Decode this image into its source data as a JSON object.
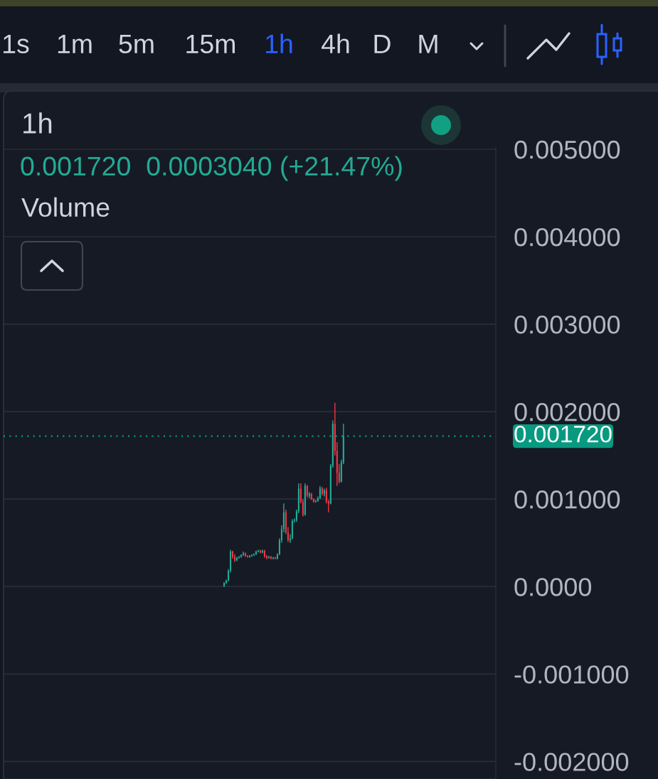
{
  "chart_data": {
    "type": "candlestick",
    "title": "1h",
    "subtitle": "0.001720  0.0003040 (+21.47%)",
    "annotations": [
      "1s",
      "1m",
      "5m",
      "15m",
      "1h",
      "4h",
      "D",
      "M",
      "Volume"
    ],
    "categories": [
      null,
      null,
      null,
      null,
      null,
      null,
      null,
      null,
      null,
      null,
      null,
      null,
      null,
      null,
      null,
      null,
      null,
      null,
      null,
      null,
      null,
      null,
      null,
      null,
      null,
      null,
      null,
      null,
      null,
      null,
      null,
      null,
      null,
      null,
      null,
      null,
      null,
      null,
      null,
      null,
      null,
      null,
      null,
      null,
      null,
      null,
      null,
      null,
      null,
      null,
      null,
      null,
      null,
      null,
      null,
      null,
      null,
      null,
      null,
      null,
      null,
      null,
      null,
      null,
      null,
      null,
      null,
      null,
      null,
      null,
      null,
      null,
      null,
      null,
      null,
      null,
      null,
      null,
      null,
      null,
      null,
      null,
      null,
      null,
      null,
      null,
      null,
      null,
      null,
      null,
      null,
      null,
      null,
      null,
      null,
      null,
      null,
      null,
      null,
      null,
      null,
      null,
      null,
      null,
      null,
      null,
      null,
      null,
      null,
      null,
      null,
      null,
      null,
      null,
      null,
      null,
      null,
      null,
      null,
      null,
      null,
      null,
      null,
      null,
      null,
      null,
      null,
      null,
      null,
      null,
      null,
      null,
      null,
      null,
      null,
      null,
      null,
      null,
      null,
      null,
      null,
      null,
      null,
      null,
      null,
      null,
      null,
      null,
      null,
      null,
      null,
      null,
      null,
      null,
      null,
      null,
      null,
      null,
      null,
      null,
      null,
      null,
      null,
      null,
      null,
      null,
      null,
      null,
      null,
      null,
      null,
      null,
      null,
      null,
      null,
      null,
      null,
      null,
      null,
      null,
      null,
      null,
      null,
      null,
      null,
      null,
      null,
      null,
      null,
      null,
      null,
      null,
      null,
      null,
      null,
      null,
      null,
      null,
      null,
      null,
      null,
      null,
      null,
      null,
      null,
      null,
      null,
      null,
      null,
      null,
      null,
      null,
      null,
      null,
      null,
      null,
      null,
      null,
      null,
      null,
      null,
      null,
      null,
      null,
      null,
      null,
      null,
      null,
      null,
      null,
      null
    ],
    "ohlc": [
      null,
      null,
      null,
      null,
      null,
      null,
      null,
      null,
      null,
      null,
      null,
      null,
      null,
      null,
      null,
      null,
      null,
      null,
      null,
      null,
      null,
      null,
      null,
      null,
      null,
      null,
      null,
      null,
      null,
      null,
      null,
      null,
      null,
      null,
      null,
      null,
      null,
      null,
      null,
      null,
      null,
      null,
      null,
      null,
      null,
      null,
      null,
      null,
      null,
      null,
      null,
      null,
      null,
      null,
      null,
      null,
      null,
      null,
      null,
      null,
      null,
      null,
      null,
      null,
      null,
      null,
      null,
      null,
      null,
      null,
      null,
      null,
      null,
      null,
      null,
      null,
      null,
      null,
      null,
      null,
      null,
      null,
      null,
      null,
      null,
      null,
      null,
      null,
      null,
      null,
      null,
      null,
      null,
      null,
      null,
      null,
      null,
      null,
      null,
      null,
      null,
      null,
      null,
      [
        0.0,
        5e-05,
        0.0,
        4e-05
      ],
      [
        4e-05,
        8e-05,
        3e-05,
        7e-05
      ],
      [
        7e-05,
        0.0002,
        6e-05,
        0.00018
      ],
      [
        0.00018,
        0.00042,
        0.00016,
        0.0004
      ],
      [
        0.0004,
        0.00041,
        0.00032,
        0.00034
      ],
      [
        0.00034,
        0.00037,
        0.00028,
        0.0003
      ],
      [
        0.0003,
        0.00034,
        0.00029,
        0.00033
      ],
      [
        0.00033,
        0.00035,
        0.00032,
        0.00034
      ],
      [
        0.00034,
        0.00037,
        0.00033,
        0.00036
      ],
      [
        0.00036,
        0.0004,
        0.00035,
        0.00038
      ],
      [
        0.00038,
        0.00039,
        0.00034,
        0.00035
      ],
      [
        0.00035,
        0.00036,
        0.00033,
        0.00034
      ],
      [
        0.00034,
        0.00036,
        0.00033,
        0.00035
      ],
      [
        0.00035,
        0.00037,
        0.00034,
        0.00036
      ],
      [
        0.00036,
        0.00038,
        0.00035,
        0.00037
      ],
      [
        0.00037,
        0.00041,
        0.00036,
        0.0004
      ],
      [
        0.0004,
        0.00042,
        0.00039,
        0.00041
      ],
      [
        0.00041,
        0.00042,
        0.00038,
        0.00039
      ],
      [
        0.00039,
        0.00042,
        0.00038,
        0.00041
      ],
      [
        0.00041,
        0.00042,
        0.00033,
        0.00035
      ],
      [
        0.00035,
        0.00036,
        0.00031,
        0.00033
      ],
      [
        0.00033,
        0.00035,
        0.00032,
        0.00034
      ],
      [
        0.00034,
        0.00035,
        0.00031,
        0.00032
      ],
      [
        0.00032,
        0.00034,
        0.00031,
        0.00033
      ],
      [
        0.00033,
        0.00034,
        0.00031,
        0.00032
      ],
      [
        0.00032,
        0.00038,
        0.00031,
        0.00037
      ],
      [
        0.00037,
        0.00055,
        0.00036,
        0.00053
      ],
      [
        0.00053,
        0.0007,
        0.0005,
        0.00066
      ],
      [
        0.00066,
        0.00095,
        0.00062,
        0.00085
      ],
      [
        0.00085,
        0.00088,
        0.0006,
        0.00062
      ],
      [
        0.00062,
        0.00068,
        0.00051,
        0.00053
      ],
      [
        0.00053,
        0.0006,
        0.0005,
        0.00055
      ],
      [
        0.00055,
        0.00077,
        0.00054,
        0.00075
      ],
      [
        0.00075,
        0.00078,
        0.00073,
        0.00076
      ],
      [
        0.00076,
        0.00088,
        0.00074,
        0.00086
      ],
      [
        0.00086,
        0.00118,
        0.00084,
        0.00112
      ],
      [
        0.00112,
        0.00118,
        0.00095,
        0.00097
      ],
      [
        0.00097,
        0.001,
        0.0008,
        0.00082
      ],
      [
        0.00082,
        0.00118,
        0.00081,
        0.00115
      ],
      [
        0.00115,
        0.00116,
        0.00102,
        0.00104
      ],
      [
        0.00104,
        0.00108,
        0.00101,
        0.00106
      ],
      [
        0.00106,
        0.00107,
        0.00099,
        0.001
      ],
      [
        0.001,
        0.00101,
        0.00096,
        0.00097
      ],
      [
        0.00097,
        0.00099,
        0.00096,
        0.00098
      ],
      [
        0.00098,
        0.00103,
        0.00097,
        0.00101
      ],
      [
        0.00101,
        0.00115,
        0.001,
        0.00112
      ],
      [
        0.00112,
        0.00114,
        0.00104,
        0.00106
      ],
      [
        0.00106,
        0.00112,
        0.00103,
        0.0011
      ],
      [
        0.0011,
        0.00113,
        0.00095,
        0.00097
      ],
      [
        0.00097,
        0.00099,
        0.00085,
        0.00095
      ],
      [
        0.00095,
        0.0014,
        0.00094,
        0.00138
      ],
      [
        0.00138,
        0.0019,
        0.00136,
        0.00186
      ],
      [
        0.00186,
        0.0021,
        0.0015,
        0.00155
      ],
      [
        0.00155,
        0.00165,
        0.00115,
        0.0013
      ],
      [
        0.0013,
        0.0014,
        0.00118,
        0.0012
      ],
      [
        0.0012,
        0.00145,
        0.00119,
        0.00142
      ],
      [
        0.00142,
        0.00186,
        0.0014,
        0.00172
      ],
      null,
      null,
      null,
      null,
      null,
      null,
      null,
      null,
      null,
      null,
      null,
      null,
      null,
      null,
      null,
      null,
      null,
      null,
      null,
      null,
      null,
      null,
      null,
      null,
      null,
      null,
      null,
      null,
      null,
      null,
      null,
      null,
      null,
      null,
      null,
      null,
      null,
      null,
      null,
      null,
      null,
      null,
      null,
      null,
      null,
      null,
      null,
      null,
      null,
      null,
      null,
      null,
      null,
      null,
      null,
      null,
      null,
      null,
      null,
      null,
      null,
      null,
      null,
      null,
      null,
      null,
      null,
      null,
      null,
      null,
      null
    ],
    "colors": [
      null,
      null,
      null,
      null,
      null,
      null,
      null,
      null,
      null,
      null,
      null,
      null,
      null,
      null,
      null,
      null,
      null,
      null,
      null,
      null,
      null,
      null,
      null,
      null,
      null,
      null,
      null,
      null,
      null,
      null,
      null,
      null,
      null,
      null,
      null,
      null,
      null,
      null,
      null,
      null,
      null,
      null,
      null,
      null,
      null,
      null,
      null,
      null,
      null,
      null,
      null,
      null,
      null,
      null,
      null,
      null,
      null,
      null,
      null,
      null,
      null,
      null,
      null,
      null,
      null,
      null,
      null,
      null,
      null,
      null,
      null,
      null,
      null,
      null,
      null,
      null,
      null,
      null,
      null,
      null,
      null,
      null,
      null,
      null,
      null,
      null,
      null,
      null,
      null,
      null,
      null,
      null,
      null,
      null,
      null,
      null,
      null,
      null,
      null,
      null,
      null,
      null,
      null,
      "#22ab94",
      "#22ab94",
      "#22ab94",
      "#22ab94",
      "#f23645",
      "#f23645",
      "#22ab94",
      "#22ab94",
      "#22ab94",
      "#22ab94",
      "#f23645",
      "#f23645",
      "#22ab94",
      "#22ab94",
      "#22ab94",
      "#22ab94",
      "#22ab94",
      "#f23645",
      "#22ab94",
      "#f23645",
      "#f23645",
      "#22ab94",
      "#f23645",
      "#22ab94",
      "#f23645",
      "#22ab94",
      "#22ab94",
      "#22ab94",
      "#22ab94",
      "#f23645",
      "#f23645",
      "#22ab94",
      "#22ab94",
      "#22ab94",
      "#22ab94",
      "#22ab94",
      "#f23645",
      "#f23645",
      "#22ab94",
      "#f23645",
      "#22ab94",
      "#f23645",
      "#f23645",
      "#22ab94",
      "#22ab94",
      "#22ab94",
      "#f23645",
      "#22ab94",
      "#f23645",
      "#f23645",
      "#22ab94",
      "#22ab94",
      "#f23645",
      "#f23645",
      "#f23645",
      "#22ab94",
      "#22ab94",
      null,
      null,
      null,
      null,
      null,
      null,
      null,
      null,
      null,
      null,
      null,
      null,
      null,
      null,
      null,
      null,
      null,
      null,
      null,
      null,
      null,
      null,
      null,
      null,
      null,
      null,
      null,
      null,
      null,
      null,
      null,
      null,
      null,
      null,
      null,
      null,
      null,
      null,
      null,
      null,
      null,
      null,
      null,
      null,
      null,
      null,
      null,
      null,
      null,
      null,
      null,
      null,
      null,
      null,
      null,
      null,
      null,
      null,
      null,
      null,
      null,
      null,
      null,
      null,
      null,
      null,
      null,
      null,
      null,
      null,
      null
    ],
    "ylim": [
      -0.0022,
      0.00502
    ],
    "yticks": [
      {
        "value": 0.005,
        "label": "0.005000"
      },
      {
        "value": 0.004,
        "label": "0.004000"
      },
      {
        "value": 0.003,
        "label": "0.003000"
      },
      {
        "value": 0.002,
        "label": "0.002000"
      },
      {
        "value": 0.001,
        "label": "0.001000"
      },
      {
        "value": 0,
        "label": "0.0000"
      },
      {
        "value": -0.001,
        "label": "-0.001000"
      },
      {
        "value": -0.002,
        "label": "-0.002000"
      }
    ],
    "ref_lines": [
      {
        "axis": "y",
        "value": 0.00172,
        "label": "0.001720",
        "color": "#089981",
        "line_style": "dotted"
      }
    ],
    "grid": "y",
    "tick_labels": "y"
  }
}
